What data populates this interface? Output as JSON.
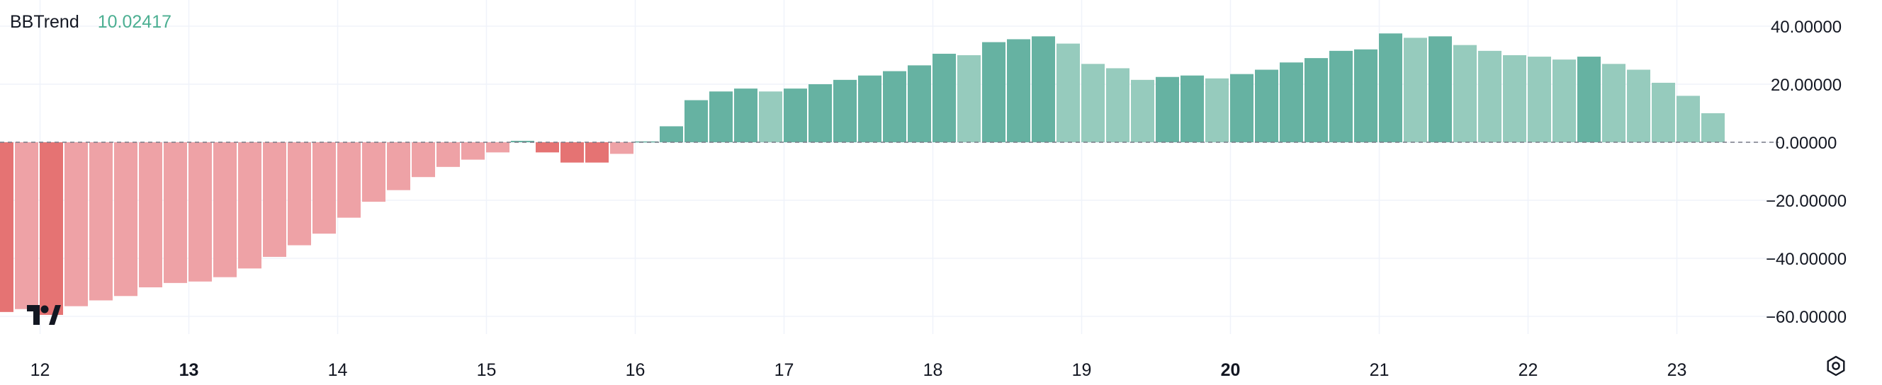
{
  "legend": {
    "name": "BBTrend",
    "value": "10.02417"
  },
  "colors": {
    "negative_strong": "#e57373",
    "negative_light": "#eea2a6",
    "positive_strong": "#66b2a2",
    "positive_light": "#96cbbd",
    "grid": "#f0f3fa",
    "zero_line": "#787b86",
    "axis_text": "#131722",
    "legend_value": "#4caf92"
  },
  "icons": {
    "logo": "tradingview-logo-icon",
    "settings": "gear-icon"
  },
  "chart_data": {
    "type": "bar",
    "title": "",
    "grid": true,
    "y_axis": {
      "position": "right",
      "ticks": [
        40,
        20,
        0,
        -20,
        -40,
        -60
      ],
      "tick_labels": [
        "40.00000",
        "20.00000",
        "0.00000",
        "−20.00000",
        "−40.00000",
        "−60.00000"
      ],
      "ylim": [
        -72,
        47
      ]
    },
    "x_axis": {
      "labels": [
        "12",
        "13",
        "14",
        "15",
        "16",
        "17",
        "18",
        "19",
        "20",
        "21",
        "22",
        "23"
      ],
      "bold_labels": [
        "13",
        "20"
      ],
      "label_bar_index": [
        1,
        7,
        13,
        19,
        25,
        31,
        37,
        43,
        49,
        55,
        61,
        67
      ]
    },
    "zero_line": "dashed",
    "values": [
      -58.5,
      -57.5,
      -59.5,
      -56.5,
      -54.5,
      -53,
      -50,
      -48.5,
      -48,
      -46.5,
      -43.5,
      -39.5,
      -35.5,
      -31.5,
      -26,
      -20.5,
      -16.5,
      -12,
      -8.5,
      -6,
      -3.5,
      0.5,
      -3.5,
      -7,
      -7,
      -4,
      0.3,
      5.5,
      14.5,
      17.5,
      18.5,
      17.5,
      18.5,
      20,
      21.5,
      23,
      24.5,
      26.5,
      30.5,
      30,
      34.5,
      35.5,
      36.5,
      34,
      27,
      25.5,
      21.5,
      22.5,
      23,
      22,
      23.5,
      25,
      27.5,
      29,
      31.5,
      32,
      37.5,
      36,
      36.5,
      33.5,
      31.5,
      30,
      29.5,
      28.5,
      29.5,
      27,
      25,
      20.5,
      16,
      10
    ]
  }
}
